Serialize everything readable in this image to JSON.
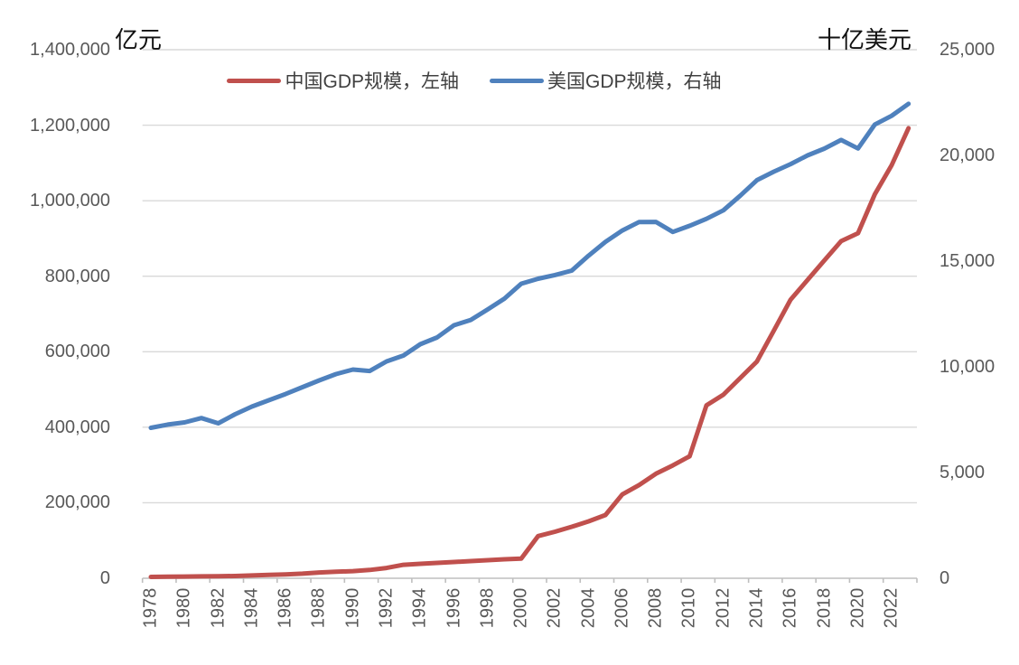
{
  "chart_data": {
    "type": "line",
    "title": "",
    "grid": "horizontal-only",
    "legend_position": "top-center",
    "background": "#ffffff",
    "gridline_color": "#d9d9d9",
    "axis_line_color": "#bfbfbf",
    "tick_text_color": "#595959",
    "left_axis": {
      "title": "亿元",
      "min": 0,
      "max": 1400000,
      "step": 200000,
      "tick_labels": [
        "0",
        "200,000",
        "400,000",
        "600,000",
        "800,000",
        "1,000,000",
        "1,200,000",
        "1,400,000"
      ]
    },
    "right_axis": {
      "title": "十亿美元",
      "min": 0,
      "max": 25000,
      "step": 5000,
      "tick_labels": [
        "0",
        "5,000",
        "10,000",
        "15,000",
        "20,000",
        "25,000"
      ]
    },
    "x_axis": {
      "years": [
        1978,
        1979,
        1980,
        1981,
        1982,
        1983,
        1984,
        1985,
        1986,
        1987,
        1988,
        1989,
        1990,
        1991,
        1992,
        1993,
        1994,
        1995,
        1996,
        1997,
        1998,
        1999,
        2000,
        2001,
        2002,
        2003,
        2004,
        2005,
        2006,
        2007,
        2008,
        2009,
        2010,
        2011,
        2012,
        2013,
        2014,
        2015,
        2016,
        2017,
        2018,
        2019,
        2020,
        2021,
        2022,
        2023
      ],
      "tick_labels": [
        "1978",
        "1980",
        "1982",
        "1984",
        "1986",
        "1988",
        "1990",
        "1992",
        "1994",
        "1996",
        "1998",
        "2000",
        "2002",
        "2004",
        "2006",
        "2008",
        "2010",
        "2012",
        "2014",
        "2016",
        "2018",
        "2020",
        "2022"
      ]
    },
    "series": [
      {
        "name": "中国GDP规模，左轴",
        "axis": "left",
        "color": "#C0504D",
        "values": [
          3700,
          4100,
          4600,
          4950,
          5400,
          6000,
          7300,
          9100,
          10400,
          12200,
          15200,
          17200,
          18900,
          22000,
          27200,
          35700,
          38300,
          40700,
          43100,
          45500,
          47900,
          50200,
          51900,
          111800,
          123300,
          136400,
          150800,
          167500,
          222000,
          247000,
          277000,
          299000,
          323000,
          458000,
          486000,
          530000,
          574000,
          656000,
          738000,
          790000,
          842000,
          893000,
          914000,
          1017000,
          1094000,
          1192000
        ]
      },
      {
        "name": "美国GDP规模，右轴",
        "axis": "right",
        "color": "#4F81BD",
        "values": [
          7115,
          7270,
          7370,
          7575,
          7330,
          7755,
          8120,
          8420,
          8715,
          9040,
          9360,
          9660,
          9870,
          9805,
          10255,
          10535,
          11070,
          11390,
          11965,
          12220,
          12715,
          13225,
          13930,
          14165,
          14340,
          14550,
          15260,
          15910,
          16450,
          16850,
          16855,
          16380,
          16670,
          17000,
          17400,
          18090,
          18830,
          19230,
          19590,
          20000,
          20320,
          20730,
          20330,
          21460,
          21870,
          22440
        ]
      }
    ]
  }
}
